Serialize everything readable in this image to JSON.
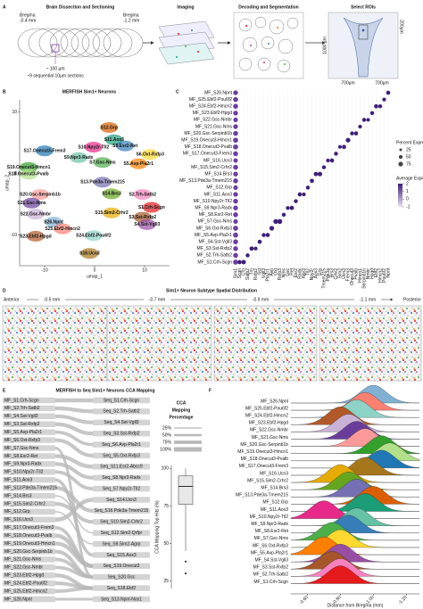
{
  "panels": {
    "letters": [
      "A",
      "B",
      "C",
      "D",
      "E",
      "F"
    ]
  },
  "panel_a": {
    "title_sectioning": "Brain Dissection and Sectioning",
    "bregma_left": "Bregma",
    "bregma_left_mm": "-0.4 mm",
    "bregma_right": "Bregma",
    "bregma_right_mm": "-1.2 mm",
    "thickness": "~ 100 µm",
    "sections": "~9 sequential 10µm sections",
    "title_imaging": "Imaging",
    "title_decoding": "Decoding and Segmentation",
    "title_roi": "Select ROIs",
    "roi_height": "1000 µm",
    "roi_inset": "200µm",
    "roi_width_left": "700µm",
    "roi_width_right": "700µm"
  },
  "panel_d": {
    "title": "Sim1+ Neuron Subtype Spatial Distribution",
    "anterior": "Anterior",
    "posterior": "Posterior",
    "sections": [
      "-0.5 mm",
      "-0.7 mm",
      "-0.9 mm",
      "-1.1 mm"
    ]
  },
  "chart_data": [
    {
      "type": "scatter",
      "title": "MERFISH Sim1+ Neurons",
      "x_label": "umap_1",
      "y_label": "umap_2",
      "xlim": [
        -15,
        15
      ],
      "xticks": [
        -10,
        0,
        10
      ],
      "ylim": [
        -15,
        12
      ],
      "yticks": [
        -10,
        0,
        10
      ],
      "series": [
        {
          "name": "S12.Grp",
          "color": "#d95f02",
          "x": [
            2.9
          ],
          "y": [
            7.5
          ]
        },
        {
          "name": "S11.Aox3",
          "color": "#1b9e77",
          "x": [
            3.9
          ],
          "y": [
            5.5
          ]
        },
        {
          "name": "S10.Npy2r-Tll2",
          "color": "#e7298a",
          "x": [
            -0.2
          ],
          "y": [
            4.3
          ]
        },
        {
          "name": "S8.Esr2-Ret",
          "color": "#377eb8",
          "x": [
            6.1
          ],
          "y": [
            4.5
          ]
        },
        {
          "name": "S17.Onecut3-Frem3",
          "color": "#1f78b4",
          "x": [
            -10
          ],
          "y": [
            3.7
          ]
        },
        {
          "name": "S9.Npr3-Radx",
          "color": "#66c2a5",
          "x": [
            -3.2
          ],
          "y": [
            2.6
          ]
        },
        {
          "name": "S6.Oxt-Rxfp3",
          "color": "#ffd92f",
          "x": [
            11.1
          ],
          "y": [
            3.1
          ]
        },
        {
          "name": "S19.Onecut3-Hmcn1",
          "color": "#33a02c",
          "x": [
            -13.2
          ],
          "y": [
            1.0
          ]
        },
        {
          "name": "S18.Onecut3-Pvalb",
          "color": "#b2df8a",
          "x": [
            -13.2
          ],
          "y": [
            -0.1
          ]
        },
        {
          "name": "S7.Gsc-Nms",
          "color": "#4daf4a",
          "x": [
            1.6
          ],
          "y": [
            1.8
          ]
        },
        {
          "name": "S5.Avp-Pla2r1",
          "color": "#ff7f00",
          "x": [
            8.8
          ],
          "y": [
            1.6
          ]
        },
        {
          "name": "S13.Pde3a-Tmem215",
          "color": "#7570b3",
          "x": [
            1.6
          ],
          "y": [
            -1.4
          ]
        },
        {
          "name": "S14.Brs3",
          "color": "#66a61e",
          "x": [
            3.4
          ],
          "y": [
            -3.3
          ]
        },
        {
          "name": "S20.Gsc-Serpinb1b",
          "color": "#fb9a99",
          "x": [
            -10.9
          ],
          "y": [
            -3.4
          ]
        },
        {
          "name": "S21.Gsc-Nms",
          "color": "#6a3d9a",
          "x": [
            -12.6
          ],
          "y": [
            -4.8
          ]
        },
        {
          "name": "S2.Trh-Satb2",
          "color": "#f781bf",
          "x": [
            9.6
          ],
          "y": [
            -3.4
          ]
        },
        {
          "name": "S1.Crh-Scgn",
          "color": "#e41a1c",
          "x": [
            11.4
          ],
          "y": [
            -5.5
          ]
        },
        {
          "name": "S22.Gsc-Nmbr",
          "color": "#cab2d6",
          "x": [
            -11.8
          ],
          "y": [
            -6.6
          ]
        },
        {
          "name": "S15.Sim2-Crhr2",
          "color": "#e6ab02",
          "x": [
            3.4
          ],
          "y": [
            -6.4
          ]
        },
        {
          "name": "S3.Sst-Rxfp2",
          "color": "#a65628",
          "x": [
            9.6
          ],
          "y": [
            -7.1
          ]
        },
        {
          "name": "S4.Sst-Vgll3",
          "color": "#984ea3",
          "x": [
            10.5
          ],
          "y": [
            -8.3
          ]
        },
        {
          "name": "S26.Npnt",
          "color": "#80b1d3",
          "x": [
            -8.2
          ],
          "y": [
            -7.9
          ]
        },
        {
          "name": "S25.Ebf2-Hmcn2",
          "color": "#fb8072",
          "x": [
            -6.4
          ],
          "y": [
            -9.0
          ]
        },
        {
          "name": "S24.Ebf2-Pou6f2",
          "color": "#8dd3c7",
          "x": [
            -0.2
          ],
          "y": [
            -10.1
          ]
        },
        {
          "name": "S23.Ebf2-Hpgd",
          "color": "#b15928",
          "x": [
            -11.8
          ],
          "y": [
            -10.2
          ]
        },
        {
          "name": "S16.Ucn3",
          "color": "#a6761d",
          "x": [
            -1.0
          ],
          "y": [
            -13.0
          ]
        }
      ]
    },
    {
      "type": "dot",
      "rows": [
        "MF_S26.Npnt",
        "MF_S25.Ebf2-Pou6f2",
        "MF_S24.Ebf2-Hmcn2",
        "MF_S23.Ebf2-Hpgd",
        "MF_S22.Gsc-Nmbr",
        "MF_S21.Gsc-Nms",
        "MF_S20.Gsc-Serpinb1b",
        "MF_S19.Onecut3-Hmcn1",
        "MF_S18.Onecut3-Pvalb",
        "MF_S17.Onecut3-Frem3",
        "MF_S16.Ucn3",
        "MF_S15.Sim2-Crhr2",
        "MF_S14.Brs3",
        "MF_S13.Pde3a-Tmem215",
        "MF_S12.Grp",
        "MF_S11.Aox3",
        "MF_S10.Npy2r-Tll2",
        "MF_S9.Npr3-Radx",
        "MF_S8.Esr2-Ret",
        "MF_S7.Gsc-Nms",
        "MF_S6.Oxt-Rxfp3",
        "MF_S5.Avp-Pla2r1",
        "MF_S4.Sst-Vgll3",
        "MF_S3.Sst-Rxfp2",
        "MF_S2.Trh-Satb2",
        "MF_S1.Crh-Scgn"
      ],
      "columns": [
        "Sim1",
        "Scgn",
        "Crh",
        "Satb2",
        "Trh",
        "Rxfp2",
        "Sst",
        "Vgll3",
        "Pla2r1",
        "Avp",
        "Oxt",
        "Rxfp3",
        "Nms",
        "Gsc",
        "Ret",
        "Esr2",
        "Radx",
        "Npr3",
        "Tll2",
        "Npy2r",
        "Aox3",
        "Grp",
        "Tmem215",
        "Pde3a",
        "Brs3",
        "Crhr2",
        "Sim2",
        "Ucn3",
        "Frem3",
        "Onecut3",
        "Pvalb",
        "Hmcn1",
        "Serpinb1b",
        "Nmbr",
        "Hpgd",
        "Ebf2",
        "Hmcn2",
        "Pou6f2",
        "Npnt"
      ],
      "sim1_percent": [
        80,
        85,
        85,
        80,
        75,
        80,
        85,
        90,
        90,
        85,
        70,
        85,
        80,
        85,
        75,
        80,
        85,
        80,
        85,
        75,
        90,
        90,
        85,
        80,
        85,
        90
      ],
      "marker_percent": [
        60,
        70,
        55,
        65,
        50,
        60,
        55,
        60,
        75,
        80,
        85,
        55,
        50,
        65,
        55,
        60,
        50,
        55,
        60,
        65,
        70,
        55,
        50,
        60,
        55,
        45,
        60,
        75,
        55,
        60,
        50,
        55,
        45,
        55,
        60,
        55,
        50,
        60
      ],
      "size_legend_title": "Percent Expressed",
      "size_legend": [
        25,
        50,
        75
      ],
      "color_legend_title": "Average Expression",
      "color_legend": [
        2,
        1,
        0,
        -1
      ]
    },
    {
      "type": "sankey",
      "title": "MERFISH to Seq Sim1+ Neurons CCA Mapping",
      "sources": [
        "MF_S1.Crh-Scgn",
        "MF_S2.Trh-Satb2",
        "MF_S4.Sst-Vgll3",
        "MF_S3.Sst-Rxfp2",
        "MF_S5.Avp-Pla2r1",
        "MF_S6.Oxt-Rxfp3",
        "MF_S7.Gsc-Nms",
        "MF_S8.Esr2-Ret",
        "MF_S9.Npr3-Radx",
        "MF_S10.Npy2r-Tll2",
        "MF_S11.Aox3",
        "MF_S13.Pde3a-Tmem215",
        "MF_S14.Brs3",
        "MF_S15.Sim2-Crhr2",
        "MF_S12.Grp",
        "MF_S16.Ucn3",
        "MF_S17.Onecut3-Frem3",
        "MF_S18.Onecut3-Pvalb",
        "MF_S19.Onecut3-Hmcn1",
        "MF_S20.Gsc-Serpinb1b",
        "MF_S21.Gsc-Nms",
        "MF_S22.Gsc-Nmbr",
        "MF_S23.Ebf2-Hpgd",
        "MF_S24.Ebf2-Pou6f2",
        "MF_S25.Ebf2-Hmcn2",
        "MF_S26.Npnt"
      ],
      "targets": [
        "Seq_S1.Crh-Scgn",
        "Seq_S2.Trh-Satb2",
        "Seq_S4.Sst-Vgll3",
        "Seq_S3.Sst-Rxfp2",
        "Seq_S6.Avp-Pla2r1",
        "Seq_S5.Oxt-Rxfp3",
        "Seq_S11.Esr2-Abcc9",
        "Seq_S8.Npr3-Radx",
        "Seq_S7.Npy2r-Tll2",
        "Seq_S14.Ucn3",
        "Seq_S16.Pde3a-Tmem215",
        "Seq_S10.Sim2-Crhr2",
        "Seq_S12.Sim2-Qrfpr",
        "Seq_S9.Sim2-Agrp",
        "Seq_S15.Aox3",
        "Seq_S19.Onecut3",
        "Seq_S20.Gsc",
        "Seq_S18.Ebf2",
        "Seq_S13.Npnt-Nos1"
      ],
      "links": [
        {
          "source": 0,
          "target": 0,
          "percent": 90
        },
        {
          "source": 1,
          "target": 1,
          "percent": 85
        },
        {
          "source": 2,
          "target": 2,
          "percent": 80
        },
        {
          "source": 3,
          "target": 3,
          "percent": 85
        },
        {
          "source": 4,
          "target": 4,
          "percent": 70
        },
        {
          "source": 5,
          "target": 5,
          "percent": 80
        },
        {
          "source": 6,
          "target": 16,
          "percent": 60
        },
        {
          "source": 7,
          "target": 6,
          "percent": 85
        },
        {
          "source": 8,
          "target": 7,
          "percent": 80
        },
        {
          "source": 9,
          "target": 8,
          "percent": 75
        },
        {
          "source": 10,
          "target": 14,
          "percent": 70
        },
        {
          "source": 11,
          "target": 10,
          "percent": 85
        },
        {
          "source": 12,
          "target": 12,
          "percent": 30
        },
        {
          "source": 13,
          "target": 11,
          "percent": 80
        },
        {
          "source": 14,
          "target": 13,
          "percent": 30
        },
        {
          "source": 15,
          "target": 9,
          "percent": 90
        },
        {
          "source": 16,
          "target": 15,
          "percent": 70
        },
        {
          "source": 17,
          "target": 15,
          "percent": 90
        },
        {
          "source": 18,
          "target": 15,
          "percent": 85
        },
        {
          "source": 19,
          "target": 16,
          "percent": 80
        },
        {
          "source": 20,
          "target": 16,
          "percent": 75
        },
        {
          "source": 21,
          "target": 16,
          "percent": 70
        },
        {
          "source": 22,
          "target": 17,
          "percent": 85
        },
        {
          "source": 23,
          "target": 17,
          "percent": 80
        },
        {
          "source": 24,
          "target": 17,
          "percent": 75
        },
        {
          "source": 25,
          "target": 18,
          "percent": 60
        }
      ],
      "legend_title": [
        "CCA",
        "Mapping",
        "Percentage"
      ],
      "legend": [
        {
          "value": 25,
          "label": "25%"
        },
        {
          "value": 50,
          "label": "50%"
        },
        {
          "value": 75,
          "label": "75%"
        },
        {
          "value": 100,
          "label": "100%"
        }
      ]
    },
    {
      "type": "box",
      "y_label": "CCA Mapping Top Hits (%)",
      "ylim": [
        20,
        102
      ],
      "yticks": [
        25,
        50,
        75,
        100
      ],
      "min": 45,
      "q1": 76,
      "median": 88,
      "q3": 95,
      "max": 100,
      "outliers": [
        38,
        30
      ]
    },
    {
      "type": "ridgeline",
      "x_label": "Distance from Bregma (mm)",
      "xlim": [
        -0.5,
        -1.28
      ],
      "xticks": [
        {
          "value": -0.6,
          "label": "-0.60"
        },
        {
          "value": -0.8,
          "label": "-0.80"
        },
        {
          "value": -1.0,
          "label": "-1.00"
        },
        {
          "value": -1.2,
          "label": "-1.20"
        }
      ],
      "series": [
        {
          "name": "MF_S26.Npnt",
          "color": "#80b1d3",
          "peak": -1.0
        },
        {
          "name": "MF_S25.Ebf2-Pou6f2",
          "color": "#fb8072",
          "peak": -0.95
        },
        {
          "name": "MF_S24.Ebf2-Hmcn2",
          "color": "#8dd3c7",
          "peak": -0.9
        },
        {
          "name": "MF_S23.Ebf2-Hpgd",
          "color": "#b15928",
          "peak": -0.8
        },
        {
          "name": "MF_S22.Gsc-Nmbr",
          "color": "#cab2d6",
          "peak": -0.85
        },
        {
          "name": "MF_S21.Gsc-Nms",
          "color": "#6a3d9a",
          "peak": -0.9
        },
        {
          "name": "MF_S20.Gsc-Serpinb1b",
          "color": "#fb9a99",
          "peak": -0.95
        },
        {
          "name": "MF_S19.Onecut3-Hmcn1",
          "color": "#33a02c",
          "peak": -1.05
        },
        {
          "name": "MF_S18.Onecut3-Pvalb",
          "color": "#b2df8a",
          "peak": -1.1
        },
        {
          "name": "MF_S17.Onecut3-Frem3",
          "color": "#1f78b4",
          "peak": -1.05
        },
        {
          "name": "MF_S16.Ucn3",
          "color": "#a6761d",
          "peak": -0.95
        },
        {
          "name": "MF_S15.Sim2-Crhr2",
          "color": "#e6ab02",
          "peak": -0.8
        },
        {
          "name": "MF_S14.Brs3",
          "color": "#66a61e",
          "peak": -0.85
        },
        {
          "name": "MF_S13.Pde3a-Tmem215",
          "color": "#7570b3",
          "peak": -0.9
        },
        {
          "name": "MF_S12.Grp",
          "color": "#d95f02",
          "peak": -1.0
        },
        {
          "name": "MF_S11.Aox3",
          "color": "#1b9e77",
          "peak": -0.95
        },
        {
          "name": "MF_S10.Npy2r-Tll2",
          "color": "#e7298a",
          "peak": -0.7
        },
        {
          "name": "MF_S9.Npr3-Radx",
          "color": "#66c2a5",
          "peak": -0.9
        },
        {
          "name": "MF_S8.Esr2-Ret",
          "color": "#377eb8",
          "peak": -0.85
        },
        {
          "name": "MF_S7.Gsc-Nms",
          "color": "#4daf4a",
          "peak": -0.75
        },
        {
          "name": "MF_S6.Oxt-Rxfp3",
          "color": "#ffd92f",
          "peak": -0.8
        },
        {
          "name": "MF_S5.Avp-Pla2r1",
          "color": "#ff7f00",
          "peak": -0.7
        },
        {
          "name": "MF_S4.Sst-Vgll3",
          "color": "#984ea3",
          "peak": -0.8
        },
        {
          "name": "MF_S3.Sst-Rxfp2",
          "color": "#a65628",
          "peak": -0.75
        },
        {
          "name": "MF_S2.Trh-Satb2",
          "color": "#f781bf",
          "peak": -0.8
        },
        {
          "name": "MF_S1.Crh-Scgn",
          "color": "#e41a1c",
          "peak": -0.8
        }
      ]
    }
  ]
}
